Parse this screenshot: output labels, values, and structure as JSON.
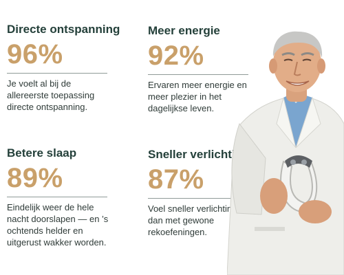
{
  "stats": [
    {
      "title": "Directe ontspanning",
      "percent": "96%",
      "description": "Je voelt al bij de allereerste toepassing directe ontspanning."
    },
    {
      "title": "Meer energie",
      "percent": "92%",
      "description": "Ervaren meer energie en meer plezier in het dagelijkse leven."
    },
    {
      "title": "Betere slaap",
      "percent": "89%",
      "description": "Eindelijk weer de hele nacht doorslapen — en ’s ochtends helder en uitgerust wakker worden."
    },
    {
      "title": "Sneller verlichting",
      "percent": "87%",
      "description": "Voel sneller verlichting  dan met gewone rekoefeningen."
    }
  ],
  "colors": {
    "heading": "#24403a",
    "percent": "#c9a06a",
    "body_text": "#2f3b38",
    "divider": "#8f9a97"
  }
}
